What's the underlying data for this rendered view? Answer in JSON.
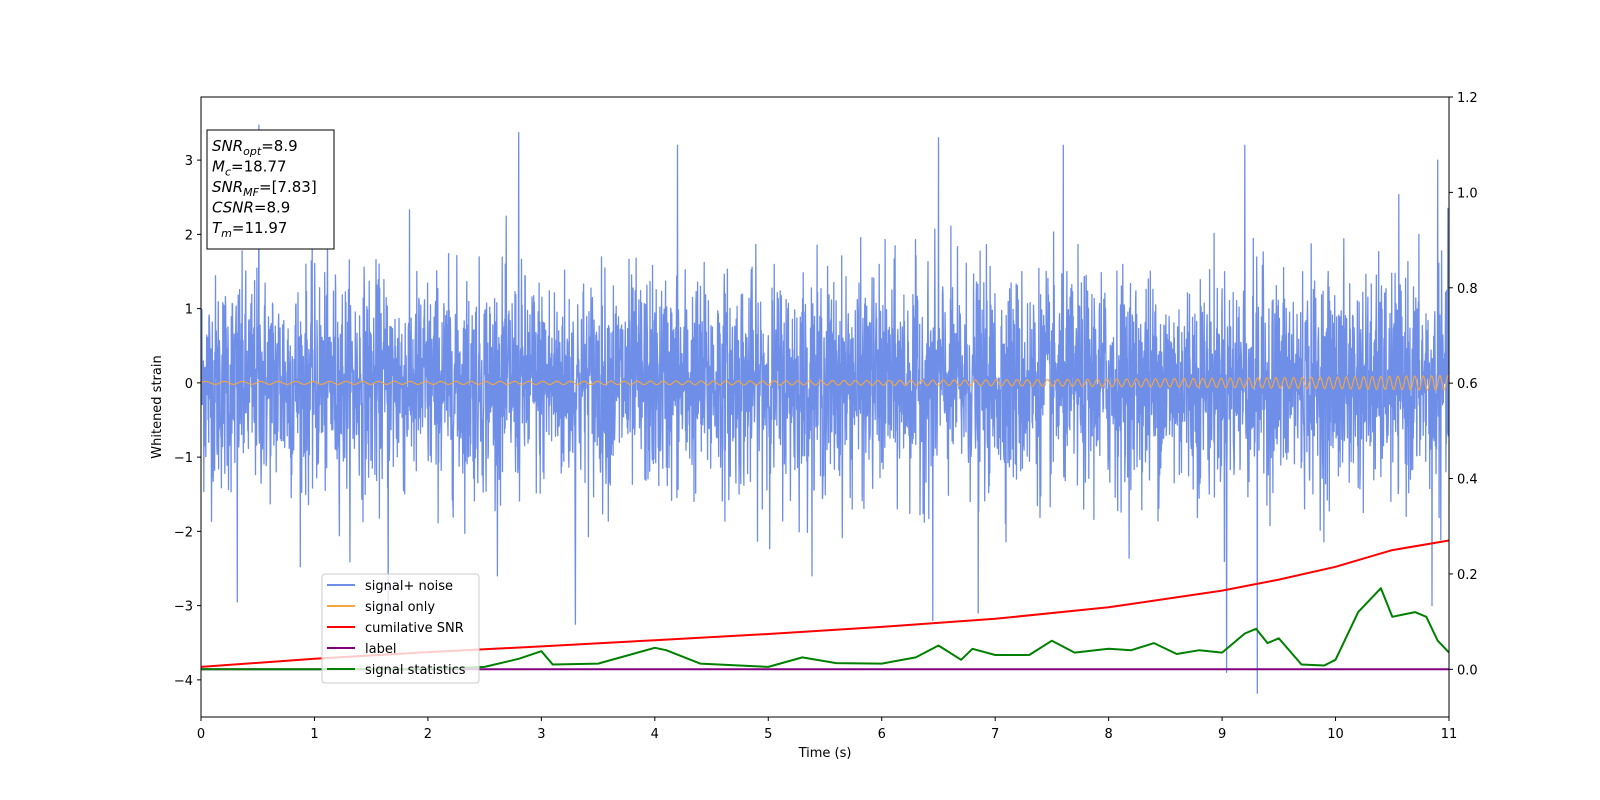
{
  "chart_data": {
    "type": "line",
    "xlabel": "Time (s)",
    "ylabel_left": "Whitened strain",
    "ylabel_right": "",
    "xlim": [
      0,
      11
    ],
    "ylim_left": [
      -4.5,
      3.85
    ],
    "ylim_right": [
      -0.1,
      1.2
    ],
    "x_ticks": [
      0,
      1,
      2,
      3,
      4,
      5,
      6,
      7,
      8,
      9,
      10,
      11
    ],
    "y_left_ticks": [
      -4,
      -3,
      -2,
      -1,
      0,
      1,
      2,
      3
    ],
    "y_right_ticks": [
      0.0,
      0.2,
      0.4,
      0.6,
      0.8,
      1.0,
      1.2
    ],
    "y_left_tick_labels": [
      "−4",
      "−3",
      "−2",
      "−1",
      "0",
      "1",
      "2",
      "3"
    ],
    "y_right_tick_labels": [
      "0.0",
      "0.2",
      "0.4",
      "0.6",
      "0.8",
      "1.0",
      "1.2"
    ],
    "grid": false,
    "legend_position": "lower-left",
    "info_box": {
      "lines": [
        {
          "sym": "SNR",
          "sub": "opt",
          "value": "=8.9"
        },
        {
          "sym": "M",
          "sub": "c",
          "value": "=18.77"
        },
        {
          "sym": "SNR",
          "sub": "MF",
          "value": "=[7.83]"
        },
        {
          "sym": "CSNR",
          "sub": "",
          "value": "=8.9"
        },
        {
          "sym": "T",
          "sub": "m",
          "value": "=11.97"
        }
      ]
    },
    "series": [
      {
        "name": "signal+ noise",
        "axis": "left",
        "color": "#6f8ee8",
        "kind": "noise",
        "typical_envelope": [
          -1.6,
          1.6
        ],
        "peaks": [
          {
            "x": 0.51,
            "y": 3.47
          },
          {
            "x": 2.8,
            "y": 3.37
          },
          {
            "x": 4.2,
            "y": 3.2
          },
          {
            "x": 6.5,
            "y": 3.3
          },
          {
            "x": 7.6,
            "y": 3.2
          },
          {
            "x": 9.2,
            "y": 3.2
          },
          {
            "x": 10.9,
            "y": 3.0
          }
        ],
        "troughs": [
          {
            "x": 0.32,
            "y": -2.95
          },
          {
            "x": 1.65,
            "y": -3.1
          },
          {
            "x": 3.3,
            "y": -3.25
          },
          {
            "x": 6.45,
            "y": -3.2
          },
          {
            "x": 6.85,
            "y": -3.1
          },
          {
            "x": 9.04,
            "y": -3.9
          },
          {
            "x": 9.31,
            "y": -4.18
          },
          {
            "x": 10.85,
            "y": -3.0
          }
        ]
      },
      {
        "name": "signal only",
        "axis": "left",
        "color": "#f5a742",
        "kind": "chirp",
        "amplitude_start": 0.02,
        "amplitude_end": 0.1
      },
      {
        "name": "cumilative SNR",
        "axis": "right",
        "color": "#ff0000",
        "x": [
          0,
          1,
          2,
          3,
          4,
          5,
          6,
          7,
          8,
          9,
          9.5,
          10,
          10.5,
          11
        ],
        "y": [
          0.005,
          0.022,
          0.036,
          0.048,
          0.061,
          0.074,
          0.089,
          0.106,
          0.13,
          0.165,
          0.188,
          0.215,
          0.25,
          0.27
        ]
      },
      {
        "name": "label",
        "axis": "right",
        "color": "#800080",
        "x": [
          0,
          11
        ],
        "y": [
          0.0,
          0.0
        ]
      },
      {
        "name": "signal statistics",
        "axis": "right",
        "color": "#008000",
        "x": [
          0,
          1,
          2,
          2.5,
          2.8,
          3.0,
          3.1,
          3.5,
          4.0,
          4.1,
          4.4,
          5.0,
          5.3,
          5.6,
          6.0,
          6.3,
          6.5,
          6.7,
          6.8,
          7.0,
          7.3,
          7.5,
          7.7,
          8.0,
          8.2,
          8.4,
          8.6,
          8.8,
          9.0,
          9.2,
          9.3,
          9.4,
          9.5,
          9.7,
          9.9,
          10.0,
          10.2,
          10.4,
          10.5,
          10.7,
          10.8,
          10.9,
          11.0
        ],
        "y": [
          0.0,
          0.0,
          0.0,
          0.005,
          0.022,
          0.038,
          0.01,
          0.012,
          0.045,
          0.04,
          0.012,
          0.005,
          0.025,
          0.013,
          0.012,
          0.025,
          0.05,
          0.02,
          0.043,
          0.03,
          0.03,
          0.06,
          0.035,
          0.043,
          0.04,
          0.055,
          0.032,
          0.04,
          0.035,
          0.075,
          0.085,
          0.055,
          0.065,
          0.01,
          0.008,
          0.02,
          0.12,
          0.17,
          0.11,
          0.12,
          0.11,
          0.06,
          0.035
        ]
      }
    ]
  }
}
